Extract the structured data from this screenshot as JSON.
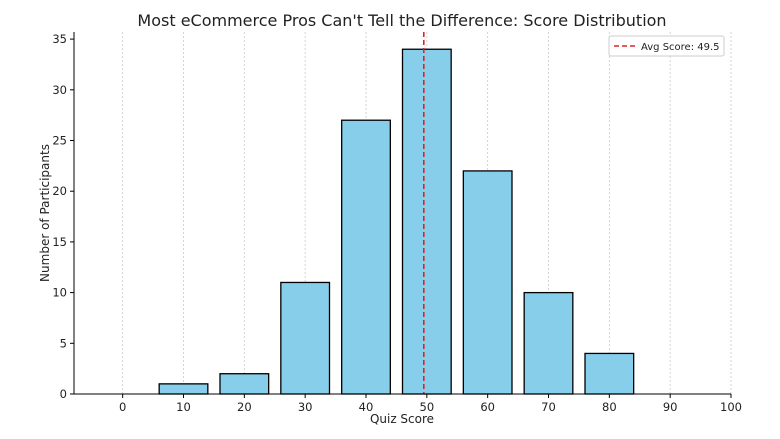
{
  "chart_data": {
    "type": "bar",
    "title": "Most eCommerce Pros Can't Tell the Difference: Score Distribution",
    "xlabel": "Quiz Score",
    "ylabel": "Number of Participants",
    "x": [
      10,
      20,
      30,
      40,
      50,
      60,
      70,
      80
    ],
    "values": [
      1,
      2,
      11,
      27,
      34,
      22,
      10,
      4
    ],
    "bar_width": 8,
    "xlim": [
      -8,
      100
    ],
    "ylim": [
      0,
      35.7
    ],
    "xticks": [
      0,
      10,
      20,
      30,
      40,
      50,
      60,
      70,
      80,
      90,
      100
    ],
    "yticks": [
      0,
      5,
      10,
      15,
      20,
      25,
      30,
      35
    ],
    "grid": "vertical, dotted",
    "bar_color": "#87CEEB",
    "bar_edge_color": "#000000",
    "reference_line": {
      "x": 49.5,
      "label": "Avg Score: 49.5",
      "color": "#d62728",
      "style": "dashed"
    },
    "legend": "top-right"
  }
}
